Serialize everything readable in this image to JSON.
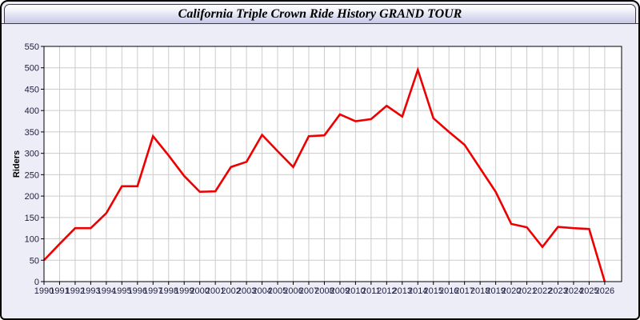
{
  "window": {
    "title": "California Triple Crown Ride History GRAND TOUR"
  },
  "chart_data": {
    "type": "line",
    "title": "California Triple Crown Ride History GRAND TOUR",
    "xlabel": "",
    "ylabel": "Riders",
    "x": [
      1990,
      1991,
      1992,
      1993,
      1994,
      1995,
      1996,
      1997,
      1998,
      1999,
      2000,
      2001,
      2002,
      2003,
      2004,
      2005,
      2006,
      2007,
      2008,
      2009,
      2010,
      2011,
      2012,
      2013,
      2014,
      2015,
      2016,
      2017,
      2018,
      2019,
      2020,
      2021,
      2022,
      2023,
      2024,
      2025,
      2026
    ],
    "series": [
      {
        "name": "Riders",
        "color": "#ee0000",
        "values": [
          50,
          88,
          125,
          125,
          160,
          223,
          223,
          340,
          295,
          247,
          210,
          211,
          268,
          280,
          343,
          305,
          268,
          340,
          342,
          391,
          375,
          380,
          411,
          386,
          495,
          382,
          350,
          320,
          265,
          210,
          135,
          127,
          81,
          128,
          125,
          123,
          0
        ]
      }
    ],
    "ylim": [
      0,
      550
    ],
    "ytick_step": 50,
    "grid": true,
    "legend_position": "none",
    "line_width": 2.6,
    "plot_background": "#ffffff",
    "grid_color": "#cccccc",
    "axis_color": "#000000",
    "tick_label_color": "#202040",
    "page_background": "#ededf8"
  }
}
